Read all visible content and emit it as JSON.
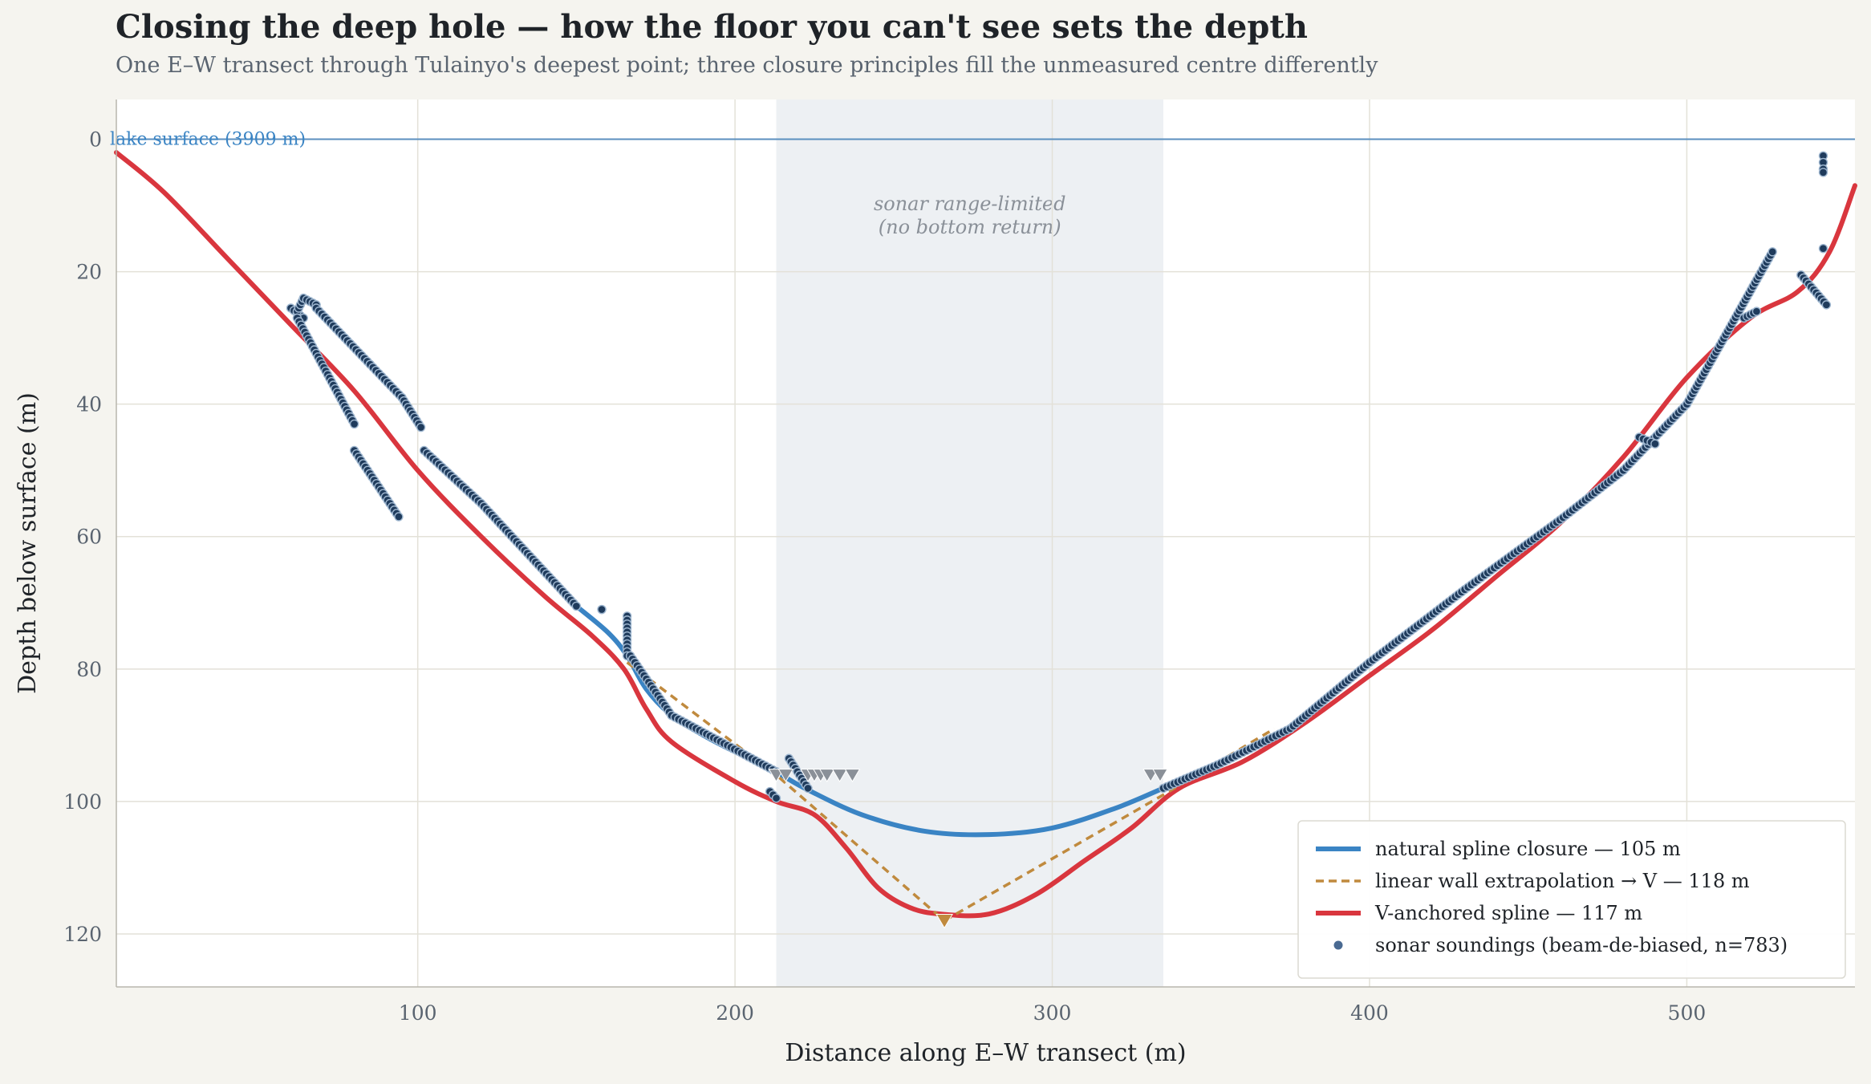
{
  "title": "Closing the deep hole — how the floor you can't see sets the depth",
  "subtitle": "One E–W transect through Tulainyo's deepest point; three closure principles fill the unmeasured centre differently",
  "colors": {
    "background": "#f5f4ef",
    "plot_background": "#ffffff",
    "grid": "#e3e1d8",
    "natural_spline": "#3a84c4",
    "linear": "#c08a3e",
    "v_spline": "#d9363e",
    "soundings": "#1f3b5c",
    "shade": "#edf0f3",
    "surface_line": "#5b8fbf",
    "marker_grey": "#8a9098"
  },
  "chart_data": {
    "type": "line",
    "xlabel": "Distance along E–W transect  (m)",
    "ylabel": "Depth below surface  (m)",
    "xlim": [
      5,
      553
    ],
    "ylim": [
      128,
      -6
    ],
    "y_inverted": true,
    "xticks": [
      100,
      200,
      300,
      400,
      500
    ],
    "yticks": [
      0,
      20,
      40,
      60,
      80,
      100,
      120
    ],
    "grid": true,
    "legend_position": "bottom-right",
    "surface": {
      "depth": 0,
      "label": "lake surface  (3909 m)"
    },
    "shaded_region": {
      "x0": 213,
      "x1": 335,
      "label_line1": "sonar range-limited",
      "label_line2": "(no bottom return)"
    },
    "series": [
      {
        "name": "natural spline closure — 105 m",
        "style": "solid",
        "color": "#3a84c4",
        "x": [
          150,
          160,
          166,
          172,
          180,
          190,
          200,
          207,
          213,
          222,
          240,
          260,
          280,
          300,
          320,
          335,
          345
        ],
        "y": [
          70.5,
          74.5,
          78,
          83,
          87,
          90,
          92.5,
          94,
          95.5,
          98,
          102,
          104.5,
          105,
          104,
          101,
          98,
          96
        ]
      },
      {
        "name": "linear wall extrapolation → V — 118 m",
        "style": "dashed",
        "color": "#c08a3e",
        "x": [
          166,
          213,
          266,
          335,
          370
        ],
        "y": [
          79,
          96,
          118,
          99,
          89
        ]
      },
      {
        "name": "V-anchored spline — 117 m",
        "style": "solid",
        "color": "#d9363e",
        "x": [
          5,
          20,
          40,
          60,
          80,
          100,
          120,
          140,
          155,
          165,
          172,
          180,
          200,
          213,
          225,
          235,
          245,
          255,
          265,
          280,
          295,
          310,
          325,
          340,
          360,
          380,
          400,
          420,
          440,
          460,
          480,
          500,
          520,
          535,
          545,
          553
        ],
        "y": [
          2,
          8,
          18,
          28,
          38,
          50,
          60,
          69,
          75,
          80,
          86,
          91,
          97,
          100,
          102,
          107,
          113,
          116,
          117,
          117,
          114,
          109,
          104,
          98,
          94,
          88,
          81,
          74,
          66,
          58,
          48,
          36,
          27,
          23,
          17,
          7
        ]
      }
    ],
    "soundings": {
      "name": "sonar soundings (beam-de-biased, n=783)",
      "n": 783,
      "segments": [
        {
          "x": [
            60,
            64
          ],
          "y": [
            25.5,
            27
          ]
        },
        {
          "x": [
            62,
            64
          ],
          "y": [
            26,
            24
          ]
        },
        {
          "x": [
            64,
            68
          ],
          "y": [
            24,
            25
          ]
        },
        {
          "x": [
            68,
            85
          ],
          "y": [
            25.5,
            34
          ]
        },
        {
          "x": [
            85,
            95
          ],
          "y": [
            34,
            39
          ]
        },
        {
          "x": [
            95,
            101
          ],
          "y": [
            39,
            43.5
          ]
        },
        {
          "x": [
            62,
            80
          ],
          "y": [
            27,
            43
          ]
        },
        {
          "x": [
            80,
            94
          ],
          "y": [
            47,
            57
          ]
        },
        {
          "x": [
            102,
            120
          ],
          "y": [
            47,
            55
          ]
        },
        {
          "x": [
            120,
            150
          ],
          "y": [
            55,
            70.5
          ]
        },
        {
          "x": [
            158,
            158
          ],
          "y": [
            71,
            71
          ]
        },
        {
          "x": [
            166,
            166
          ],
          "y": [
            72,
            78
          ]
        },
        {
          "x": [
            167,
            180
          ],
          "y": [
            78,
            87
          ]
        },
        {
          "x": [
            180,
            213
          ],
          "y": [
            87,
            95.5
          ]
        },
        {
          "x": [
            211,
            213
          ],
          "y": [
            98.5,
            99.5
          ]
        },
        {
          "x": [
            217,
            223
          ],
          "y": [
            93.5,
            98
          ]
        },
        {
          "x": [
            335,
            352
          ],
          "y": [
            98,
            94.5
          ]
        },
        {
          "x": [
            352,
            375
          ],
          "y": [
            94.5,
            89
          ]
        },
        {
          "x": [
            375,
            400
          ],
          "y": [
            89,
            79
          ]
        },
        {
          "x": [
            400,
            430
          ],
          "y": [
            79,
            68
          ]
        },
        {
          "x": [
            430,
            460
          ],
          "y": [
            68,
            57.5
          ]
        },
        {
          "x": [
            460,
            480
          ],
          "y": [
            57.5,
            50
          ]
        },
        {
          "x": [
            480,
            500
          ],
          "y": [
            50,
            40
          ]
        },
        {
          "x": [
            500,
            527
          ],
          "y": [
            40,
            17
          ]
        },
        {
          "x": [
            485,
            490
          ],
          "y": [
            45,
            46
          ]
        },
        {
          "x": [
            518,
            522
          ],
          "y": [
            27,
            26
          ]
        },
        {
          "x": [
            536,
            544
          ],
          "y": [
            20.5,
            25
          ]
        }
      ],
      "points": [
        {
          "x": 543,
          "y": 2.5
        },
        {
          "x": 543,
          "y": 3.5
        },
        {
          "x": 543,
          "y": 4.5
        },
        {
          "x": 543,
          "y": 5
        },
        {
          "x": 543,
          "y": 16.5
        }
      ]
    },
    "nadir_marker": {
      "x": 266,
      "y": 118
    },
    "no_return_markers": [
      {
        "x": 213,
        "y": 96
      },
      {
        "x": 216,
        "y": 96
      },
      {
        "x": 223,
        "y": 96
      },
      {
        "x": 225,
        "y": 96
      },
      {
        "x": 227,
        "y": 96
      },
      {
        "x": 229,
        "y": 96
      },
      {
        "x": 233,
        "y": 96
      },
      {
        "x": 237,
        "y": 96
      },
      {
        "x": 331,
        "y": 96
      },
      {
        "x": 334,
        "y": 96
      }
    ]
  }
}
